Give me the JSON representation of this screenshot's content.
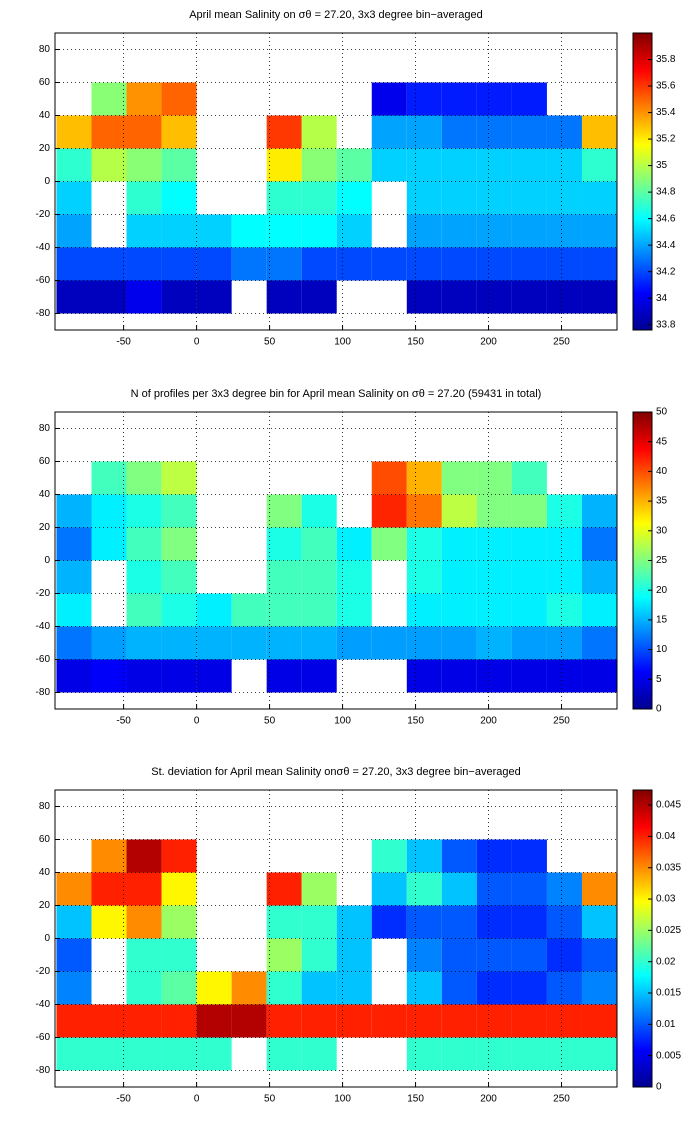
{
  "chart_data": [
    {
      "type": "heatmap",
      "title": "April mean Salinity on σθ = 27.20, 3x3 degree bin−averaged",
      "colormap": "jet",
      "grid": true,
      "xlim": [
        -97,
        288
      ],
      "ylim": [
        -90,
        90
      ],
      "xticks": [
        -50,
        0,
        50,
        100,
        150,
        200,
        250
      ],
      "yticks": [
        -80,
        -60,
        -40,
        -20,
        0,
        20,
        40,
        60,
        80
      ],
      "clim": [
        33.76,
        36.0
      ],
      "cticks": [
        33.8,
        34,
        34.2,
        34.4,
        34.6,
        34.8,
        35,
        35.2,
        35.4,
        35.6,
        35.8
      ],
      "x_edges": [
        -96,
        -72,
        -48,
        -24,
        0,
        24,
        48,
        72,
        96,
        120,
        144,
        168,
        192,
        216,
        240,
        264,
        288
      ],
      "y_edges": [
        80,
        60,
        40,
        20,
        0,
        -20,
        -40,
        -60,
        -80
      ],
      "z": [
        [
          null,
          null,
          null,
          null,
          null,
          null,
          null,
          null,
          null,
          null,
          null,
          null,
          null,
          null,
          null,
          null
        ],
        [
          null,
          34.9,
          35.4,
          35.5,
          null,
          null,
          null,
          null,
          null,
          34.0,
          34.1,
          34.1,
          34.1,
          34.1,
          null,
          null
        ],
        [
          35.3,
          35.5,
          35.5,
          35.3,
          null,
          null,
          35.6,
          35.0,
          null,
          34.4,
          34.4,
          34.3,
          34.3,
          34.3,
          34.3,
          35.3
        ],
        [
          34.7,
          35.0,
          34.9,
          34.8,
          null,
          null,
          35.2,
          34.9,
          34.8,
          34.5,
          34.5,
          34.5,
          34.5,
          34.5,
          34.5,
          34.7
        ],
        [
          34.5,
          null,
          34.7,
          34.6,
          null,
          null,
          34.7,
          34.7,
          34.6,
          null,
          34.5,
          34.5,
          34.5,
          34.5,
          34.5,
          34.5
        ],
        [
          34.4,
          null,
          34.5,
          34.5,
          34.5,
          34.6,
          34.6,
          34.6,
          34.5,
          null,
          34.4,
          34.4,
          34.4,
          34.4,
          34.4,
          34.4
        ],
        [
          34.2,
          34.2,
          34.2,
          34.2,
          34.2,
          34.3,
          34.3,
          34.2,
          34.2,
          34.2,
          34.2,
          34.2,
          34.2,
          34.2,
          34.2,
          34.2
        ],
        [
          33.9,
          33.9,
          34.0,
          33.9,
          33.9,
          null,
          33.9,
          33.9,
          null,
          null,
          33.9,
          33.9,
          33.9,
          33.9,
          33.9,
          33.9
        ]
      ]
    },
    {
      "type": "heatmap",
      "title": "N of profiles per 3x3 degree bin for April mean Salinity on σθ = 27.20 (59431 in total)",
      "colormap": "jet",
      "grid": true,
      "xlim": [
        -97,
        288
      ],
      "ylim": [
        -90,
        90
      ],
      "xticks": [
        -50,
        0,
        50,
        100,
        150,
        200,
        250
      ],
      "yticks": [
        -80,
        -60,
        -40,
        -20,
        0,
        20,
        40,
        60,
        80
      ],
      "clim": [
        0,
        50
      ],
      "cticks": [
        0,
        5,
        10,
        15,
        20,
        25,
        30,
        35,
        40,
        45,
        50
      ],
      "x_edges": [
        -96,
        -72,
        -48,
        -24,
        0,
        24,
        48,
        72,
        96,
        120,
        144,
        168,
        192,
        216,
        240,
        264,
        288
      ],
      "y_edges": [
        80,
        60,
        40,
        20,
        0,
        -20,
        -40,
        -60,
        -80
      ],
      "z": [
        [
          null,
          null,
          null,
          null,
          null,
          null,
          null,
          null,
          null,
          null,
          null,
          null,
          null,
          null,
          null,
          null
        ],
        [
          null,
          22,
          25,
          28,
          null,
          null,
          null,
          null,
          null,
          40,
          35,
          25,
          25,
          22,
          null,
          null
        ],
        [
          15,
          18,
          20,
          22,
          null,
          null,
          25,
          20,
          null,
          42,
          38,
          28,
          25,
          25,
          20,
          15
        ],
        [
          12,
          18,
          22,
          25,
          null,
          null,
          20,
          22,
          18,
          25,
          20,
          18,
          18,
          18,
          18,
          12
        ],
        [
          15,
          null,
          20,
          22,
          null,
          null,
          22,
          22,
          20,
          null,
          20,
          18,
          18,
          18,
          18,
          15
        ],
        [
          18,
          null,
          22,
          20,
          18,
          22,
          22,
          22,
          20,
          null,
          18,
          18,
          18,
          18,
          20,
          18
        ],
        [
          12,
          14,
          15,
          15,
          15,
          15,
          15,
          15,
          14,
          14,
          14,
          14,
          15,
          14,
          14,
          12
        ],
        [
          5,
          6,
          5,
          5,
          5,
          null,
          5,
          5,
          null,
          null,
          5,
          5,
          5,
          5,
          5,
          5
        ]
      ]
    },
    {
      "type": "heatmap",
      "title": "St. deviation for April mean Salinity onσθ = 27.20, 3x3 degree bin−averaged",
      "colormap": "jet",
      "grid": true,
      "xlim": [
        -97,
        288
      ],
      "ylim": [
        -90,
        90
      ],
      "xticks": [
        -50,
        0,
        50,
        100,
        150,
        200,
        250
      ],
      "yticks": [
        -80,
        -60,
        -40,
        -20,
        0,
        20,
        40,
        60,
        80
      ],
      "clim": [
        0,
        0.0474
      ],
      "cticks": [
        0,
        0.005,
        0.01,
        0.015,
        0.02,
        0.025,
        0.03,
        0.035,
        0.04,
        0.045
      ],
      "x_edges": [
        -96,
        -72,
        -48,
        -24,
        0,
        24,
        48,
        72,
        96,
        120,
        144,
        168,
        192,
        216,
        240,
        264,
        288
      ],
      "y_edges": [
        80,
        60,
        40,
        20,
        0,
        -20,
        -40,
        -60,
        -80
      ],
      "z": [
        [
          null,
          null,
          null,
          null,
          null,
          null,
          null,
          null,
          null,
          null,
          null,
          null,
          null,
          null,
          null,
          null
        ],
        [
          null,
          0.035,
          0.045,
          0.04,
          null,
          null,
          null,
          null,
          null,
          0.02,
          0.015,
          0.01,
          0.008,
          0.008,
          null,
          null
        ],
        [
          0.035,
          0.04,
          0.04,
          0.03,
          null,
          null,
          0.04,
          0.025,
          null,
          0.015,
          0.02,
          0.015,
          0.01,
          0.01,
          0.012,
          0.035
        ],
        [
          0.015,
          0.03,
          0.035,
          0.025,
          null,
          null,
          0.02,
          0.02,
          0.015,
          0.008,
          0.01,
          0.01,
          0.008,
          0.008,
          0.01,
          0.015
        ],
        [
          0.01,
          null,
          0.02,
          0.02,
          null,
          null,
          0.025,
          0.02,
          0.015,
          null,
          0.012,
          0.01,
          0.01,
          0.01,
          0.008,
          0.01
        ],
        [
          0.012,
          null,
          0.02,
          0.022,
          0.03,
          0.035,
          0.02,
          0.015,
          0.015,
          null,
          0.015,
          0.01,
          0.008,
          0.008,
          0.01,
          0.012
        ],
        [
          0.04,
          0.04,
          0.04,
          0.04,
          0.045,
          0.045,
          0.04,
          0.04,
          0.04,
          0.04,
          0.04,
          0.04,
          0.04,
          0.04,
          0.04,
          0.04
        ],
        [
          0.02,
          0.02,
          0.02,
          0.02,
          0.02,
          null,
          0.02,
          0.02,
          null,
          null,
          0.02,
          0.02,
          0.02,
          0.02,
          0.02,
          0.02
        ]
      ]
    }
  ]
}
